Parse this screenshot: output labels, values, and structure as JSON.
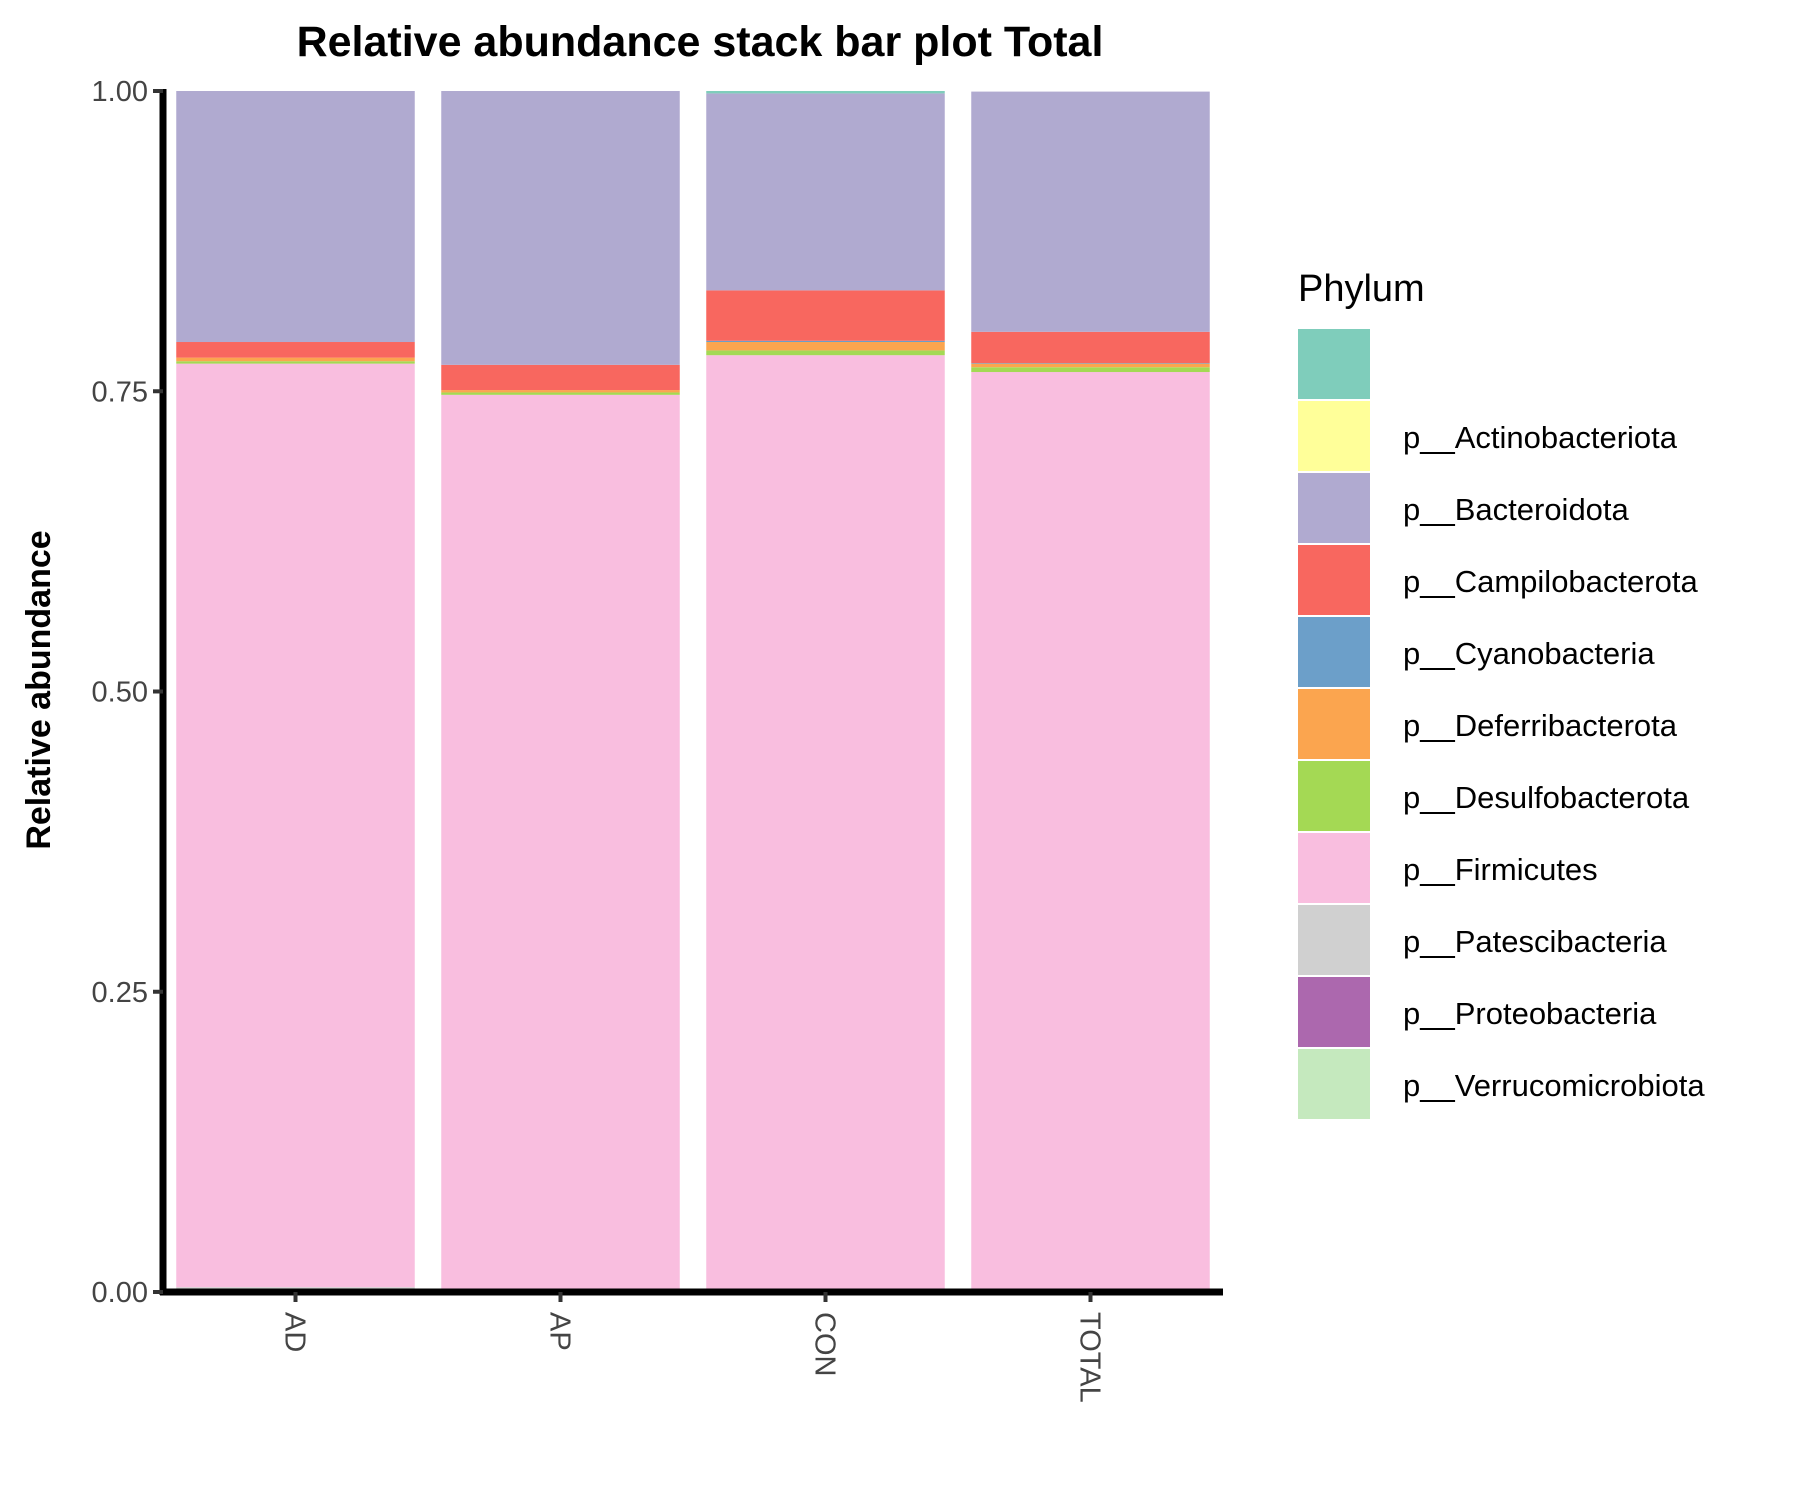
{
  "chart_data": {
    "type": "bar",
    "stacked": true,
    "title": "Relative abundance stack bar plot Total",
    "xlabel": "",
    "ylabel": "Relative abundance",
    "ylim": [
      0,
      1
    ],
    "yticks": [
      "0.00",
      "0.25",
      "0.50",
      "0.75",
      "1.00"
    ],
    "ytick_values": [
      0,
      0.25,
      0.5,
      0.75,
      1
    ],
    "categories": [
      "AD",
      "AP",
      "CON",
      "TOTAL"
    ],
    "grid": false,
    "legend": {
      "title": "Phylum",
      "placement": "right",
      "entries": [
        {
          "label": "",
          "color": "#7FCDBB"
        },
        {
          "label": "p__Actinobacteriota",
          "color": "#FFFF99"
        },
        {
          "label": "p__Bacteroidota",
          "color": "#B0AAD0"
        },
        {
          "label": "p__Campilobacterota",
          "color": "#F8675F"
        },
        {
          "label": "p__Cyanobacteria",
          "color": "#6C9FC9"
        },
        {
          "label": "p__Deferribacterota",
          "color": "#FBA54F"
        },
        {
          "label": "p__Desulfobacterota",
          "color": "#A4D954"
        },
        {
          "label": "p__Firmicutes",
          "color": "#F9BEDF"
        },
        {
          "label": "p__Patescibacteria",
          "color": "#D0D0D0"
        },
        {
          "label": "p__Proteobacteria",
          "color": "#AC68AE"
        },
        {
          "label": "p__Verrucomicrobiota",
          "color": "#C5E9BE"
        }
      ]
    },
    "series": [
      {
        "name": "p__Verrucomicrobiota",
        "color": "#C5E9BE",
        "values": [
          0.001,
          0.0,
          0.0,
          0.0005
        ]
      },
      {
        "name": "p__Proteobacteria",
        "color": "#AC68AE",
        "values": [
          0.001,
          0.0005,
          0.0005,
          0.0005
        ]
      },
      {
        "name": "p__Patescibacteria",
        "color": "#D0D0D0",
        "values": [
          0.002,
          0.0005,
          0.0005,
          0.001
        ]
      },
      {
        "name": "p__Firmicutes",
        "color": "#F9BEDF",
        "values": [
          0.769,
          0.746,
          0.779,
          0.764
        ]
      },
      {
        "name": "p__Desulfobacterota",
        "color": "#A4D954",
        "values": [
          0.002,
          0.002,
          0.004,
          0.004
        ]
      },
      {
        "name": "p__Deferribacterota",
        "color": "#FBA54F",
        "values": [
          0.003,
          0.002,
          0.007,
          0.003
        ]
      },
      {
        "name": "p__Cyanobacteria",
        "color": "#6C9FC9",
        "values": [
          0.0,
          0.0,
          0.001,
          0.0005
        ]
      },
      {
        "name": "p__Campilobacterota",
        "color": "#F8675F",
        "values": [
          0.013,
          0.021,
          0.042,
          0.026
        ]
      },
      {
        "name": "p__Bacteroidota",
        "color": "#B0AAD0",
        "values": [
          0.209,
          0.228,
          0.164,
          0.2
        ]
      },
      {
        "name": "p__Actinobacteriota",
        "color": "#FFFF99",
        "values": [
          0.0,
          0.0,
          0.0,
          0.0
        ]
      },
      {
        "name": "",
        "color": "#7FCDBB",
        "values": [
          0.0,
          0.0,
          0.002,
          0.0
        ]
      }
    ]
  }
}
